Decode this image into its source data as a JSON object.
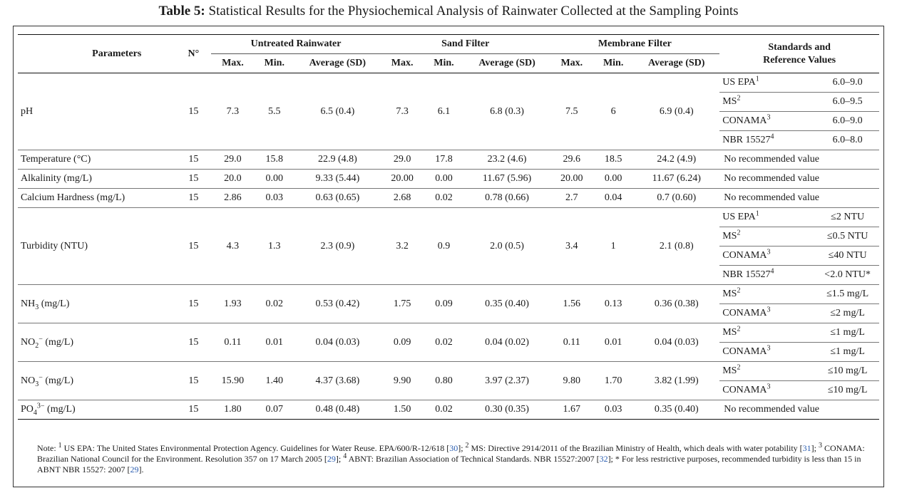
{
  "caption": {
    "label": "Table 5:",
    "text": "Statistical Results for the Physiochemical Analysis of Rainwater Collected at the Sampling Points"
  },
  "headers": {
    "parameters": "Parameters",
    "n": "N°",
    "groups": [
      "Untreated Rainwater",
      "Sand Filter",
      "Membrane Filter"
    ],
    "sub": [
      "Max.",
      "Min.",
      "Average (SD)"
    ],
    "standards_line1": "Standards and",
    "standards_line2": "Reference Values"
  },
  "rows": [
    {
      "param": "pH",
      "n": "15",
      "untreated": [
        "7.3",
        "5.5",
        "6.5 (0.4)"
      ],
      "sand": [
        "7.3",
        "6.1",
        "6.8 (0.3)"
      ],
      "membrane": [
        "7.5",
        "6",
        "6.9 (0.4)"
      ],
      "standards": [
        {
          "name": "US EPA",
          "sup": "1",
          "value": "6.0–9.0"
        },
        {
          "name": "MS",
          "sup": "2",
          "value": "6.0–9.5"
        },
        {
          "name": "CONAMA",
          "sup": "3",
          "value": "6.0–9.0"
        },
        {
          "name": "NBR 15527",
          "sup": "4",
          "value": "6.0–8.0"
        }
      ]
    },
    {
      "param": "Temperature (°C)",
      "n": "15",
      "untreated": [
        "29.0",
        "15.8",
        "22.9 (4.8)"
      ],
      "sand": [
        "29.0",
        "17.8",
        "23.2 (4.6)"
      ],
      "membrane": [
        "29.6",
        "18.5",
        "24.2 (4.9)"
      ],
      "standard_text": "No recommended value"
    },
    {
      "param": "Alkalinity (mg/L)",
      "n": "15",
      "untreated": [
        "20.0",
        "0.00",
        "9.33 (5.44)"
      ],
      "sand": [
        "20.00",
        "0.00",
        "11.67 (5.96)"
      ],
      "membrane": [
        "20.00",
        "0.00",
        "11.67 (6.24)"
      ],
      "standard_text": "No recommended value"
    },
    {
      "param": "Calcium Hardness (mg/L)",
      "n": "15",
      "untreated": [
        "2.86",
        "0.03",
        "0.63 (0.65)"
      ],
      "sand": [
        "2.68",
        "0.02",
        "0.78 (0.66)"
      ],
      "membrane": [
        "2.7",
        "0.04",
        "0.7 (0.60)"
      ],
      "standard_text": "No recommended value"
    },
    {
      "param": "Turbidity (NTU)",
      "n": "15",
      "untreated": [
        "4.3",
        "1.3",
        "2.3 (0.9)"
      ],
      "sand": [
        "3.2",
        "0.9",
        "2.0 (0.5)"
      ],
      "membrane": [
        "3.4",
        "1",
        "2.1 (0.8)"
      ],
      "standards": [
        {
          "name": "US EPA",
          "sup": "1",
          "value": "≤2 NTU"
        },
        {
          "name": "MS",
          "sup": "2",
          "value": "≤0.5 NTU"
        },
        {
          "name": "CONAMA",
          "sup": "3",
          "value": "≤40 NTU"
        },
        {
          "name": "NBR 15527",
          "sup": "4",
          "value": "<2.0 NTU*"
        }
      ]
    },
    {
      "param_main": "NH",
      "param_sub": "3",
      "param_sup": "",
      "param_rest": " (mg/L)",
      "n": "15",
      "untreated": [
        "1.93",
        "0.02",
        "0.53 (0.42)"
      ],
      "sand": [
        "1.75",
        "0.09",
        "0.35 (0.40)"
      ],
      "membrane": [
        "1.56",
        "0.13",
        "0.36 (0.38)"
      ],
      "standards": [
        {
          "name": "MS",
          "sup": "2",
          "value": "≤1.5 mg/L"
        },
        {
          "name": "CONAMA",
          "sup": "3",
          "value": "≤2 mg/L"
        }
      ]
    },
    {
      "param_main": "NO",
      "param_sub": "2",
      "param_sup": "−",
      "param_rest": " (mg/L)",
      "n": "15",
      "untreated": [
        "0.11",
        "0.01",
        "0.04 (0.03)"
      ],
      "sand": [
        "0.09",
        "0.02",
        "0.04 (0.02)"
      ],
      "membrane": [
        "0.11",
        "0.01",
        "0.04 (0.03)"
      ],
      "standards": [
        {
          "name": "MS",
          "sup": "2",
          "value": "≤1 mg/L"
        },
        {
          "name": "CONAMA",
          "sup": "3",
          "value": "≤1 mg/L"
        }
      ]
    },
    {
      "param_main": "NO",
      "param_sub": "3",
      "param_sup": "−",
      "param_rest": " (mg/L)",
      "n": "15",
      "untreated": [
        "15.90",
        "1.40",
        "4.37 (3.68)"
      ],
      "sand": [
        "9.90",
        "0.80",
        "3.97 (2.37)"
      ],
      "membrane": [
        "9.80",
        "1.70",
        "3.82 (1.99)"
      ],
      "standards": [
        {
          "name": "MS",
          "sup": "2",
          "value": "≤10 mg/L"
        },
        {
          "name": "CONAMA",
          "sup": "3",
          "value": "≤10 mg/L"
        }
      ]
    },
    {
      "param_main": "PO",
      "param_sub": "4",
      "param_sup": "3−",
      "param_rest": " (mg/L)",
      "n": "15",
      "untreated": [
        "1.80",
        "0.07",
        "0.48 (0.48)"
      ],
      "sand": [
        "1.50",
        "0.02",
        "0.30 (0.35)"
      ],
      "membrane": [
        "1.67",
        "0.03",
        "0.35 (0.40)"
      ],
      "standard_text": "No recommended value"
    }
  ],
  "note": {
    "p1": "Note: ",
    "s1": "1",
    "p2": " US EPA: The United States Environmental Protection Agency. Guidelines for Water Reuse. EPA/600/R-12/618 [",
    "r30": "30",
    "p3": "]; ",
    "s2": "2",
    "p4": " MS: Directive 2914/2011 of the Brazilian Ministry of Health, which deals with water potability [",
    "r31": "31",
    "p5": "]; ",
    "s3": "3",
    "p6": " CONAMA: Brazilian National Council for the Environment. Resolution 357 on 17 March 2005 [",
    "r29a": "29",
    "p7": "]; ",
    "s4": "4",
    "p8": " ABNT: Brazilian Association of Technical Standards. NBR 15527:2007 [",
    "r32": "32",
    "p9": "]; * For less restrictive purposes, recommended turbidity is less than 15 in ABNT NBR 15527: 2007 [",
    "r29b": "29",
    "p10": "]."
  }
}
